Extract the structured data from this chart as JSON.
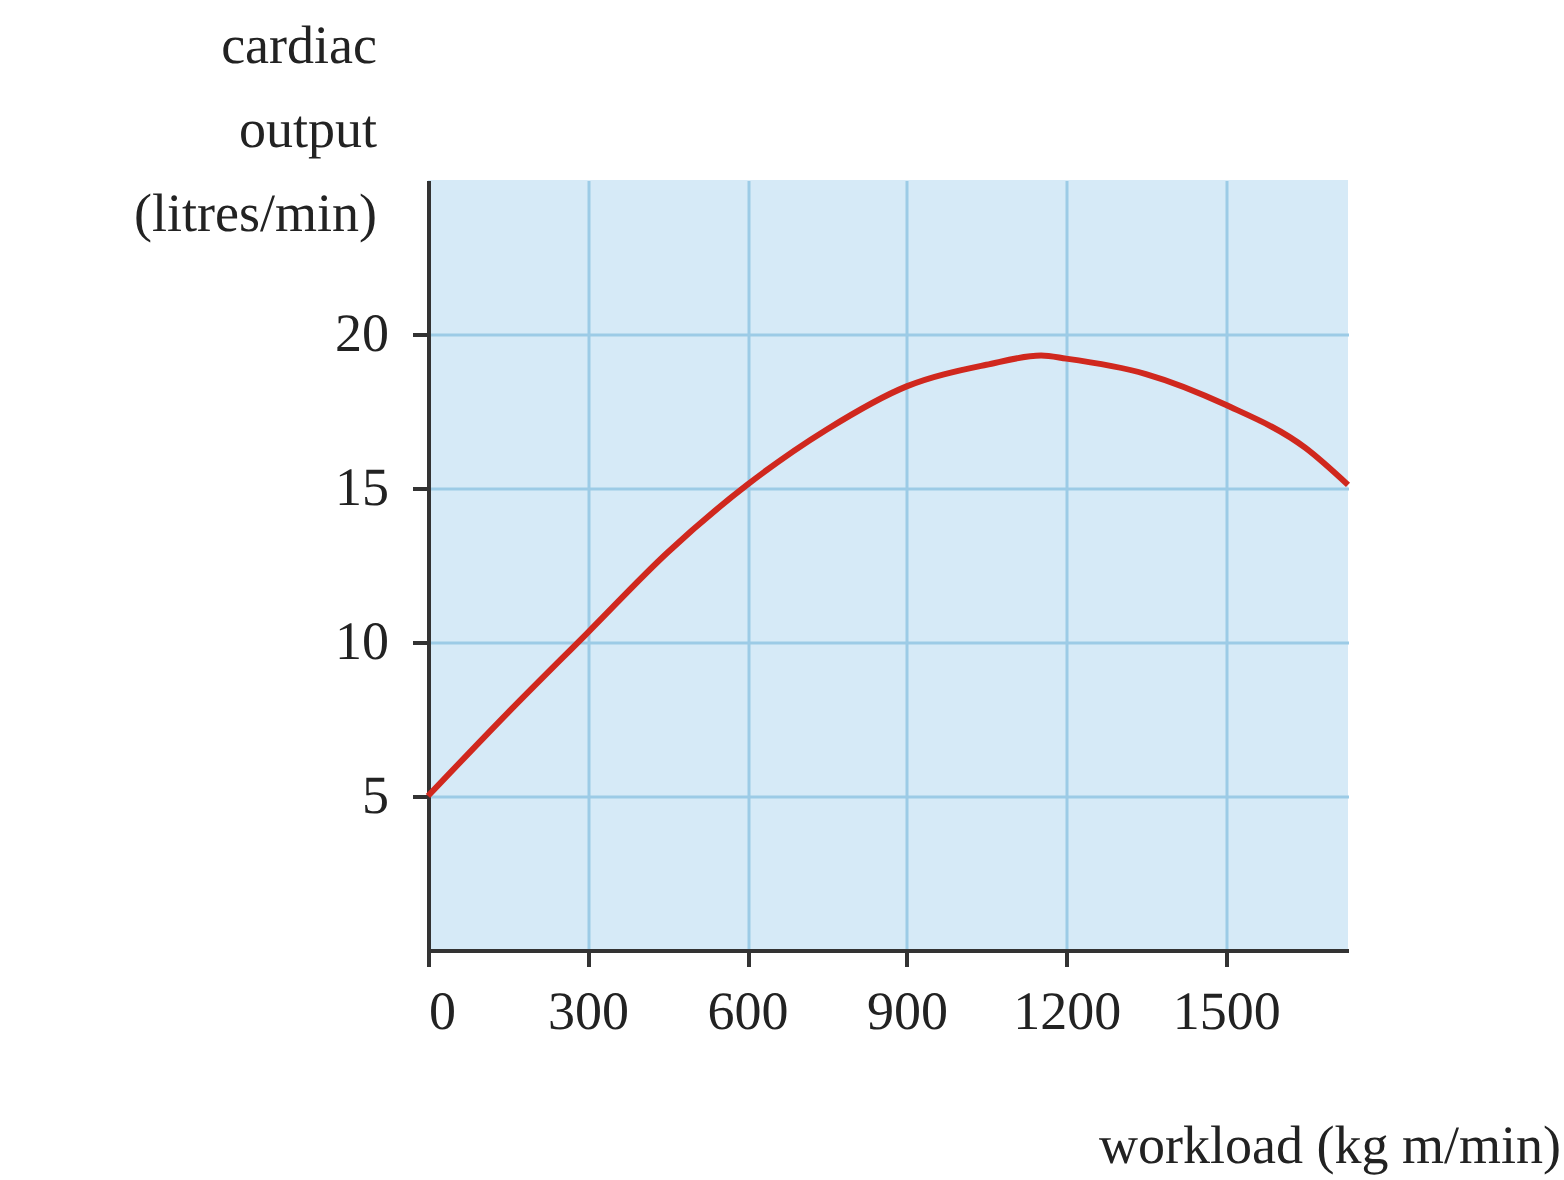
{
  "chart_data": {
    "type": "line",
    "xlabel": "workload (kg m/min)",
    "ylabel": "cardiac output (litres/min)",
    "x": [
      0,
      150,
      300,
      450,
      600,
      750,
      900,
      1050,
      1153,
      1200,
      1350,
      1500,
      1650,
      1730
    ],
    "series": [
      {
        "color": "#d0281e",
        "values": [
          5,
          7.7,
          10.3,
          12.9,
          15.1,
          16.9,
          18.3,
          19,
          19.3,
          19.2,
          18.7,
          17.7,
          16.3,
          15.1
        ]
      }
    ],
    "xlim": [
      0,
      1730
    ],
    "ylim": [
      0,
      25
    ],
    "xticks": [
      0,
      300,
      600,
      900,
      1200,
      1500
    ],
    "yticks": [
      5,
      10,
      15,
      20
    ],
    "grid": true,
    "marker": "none",
    "line_style": "solid"
  }
}
